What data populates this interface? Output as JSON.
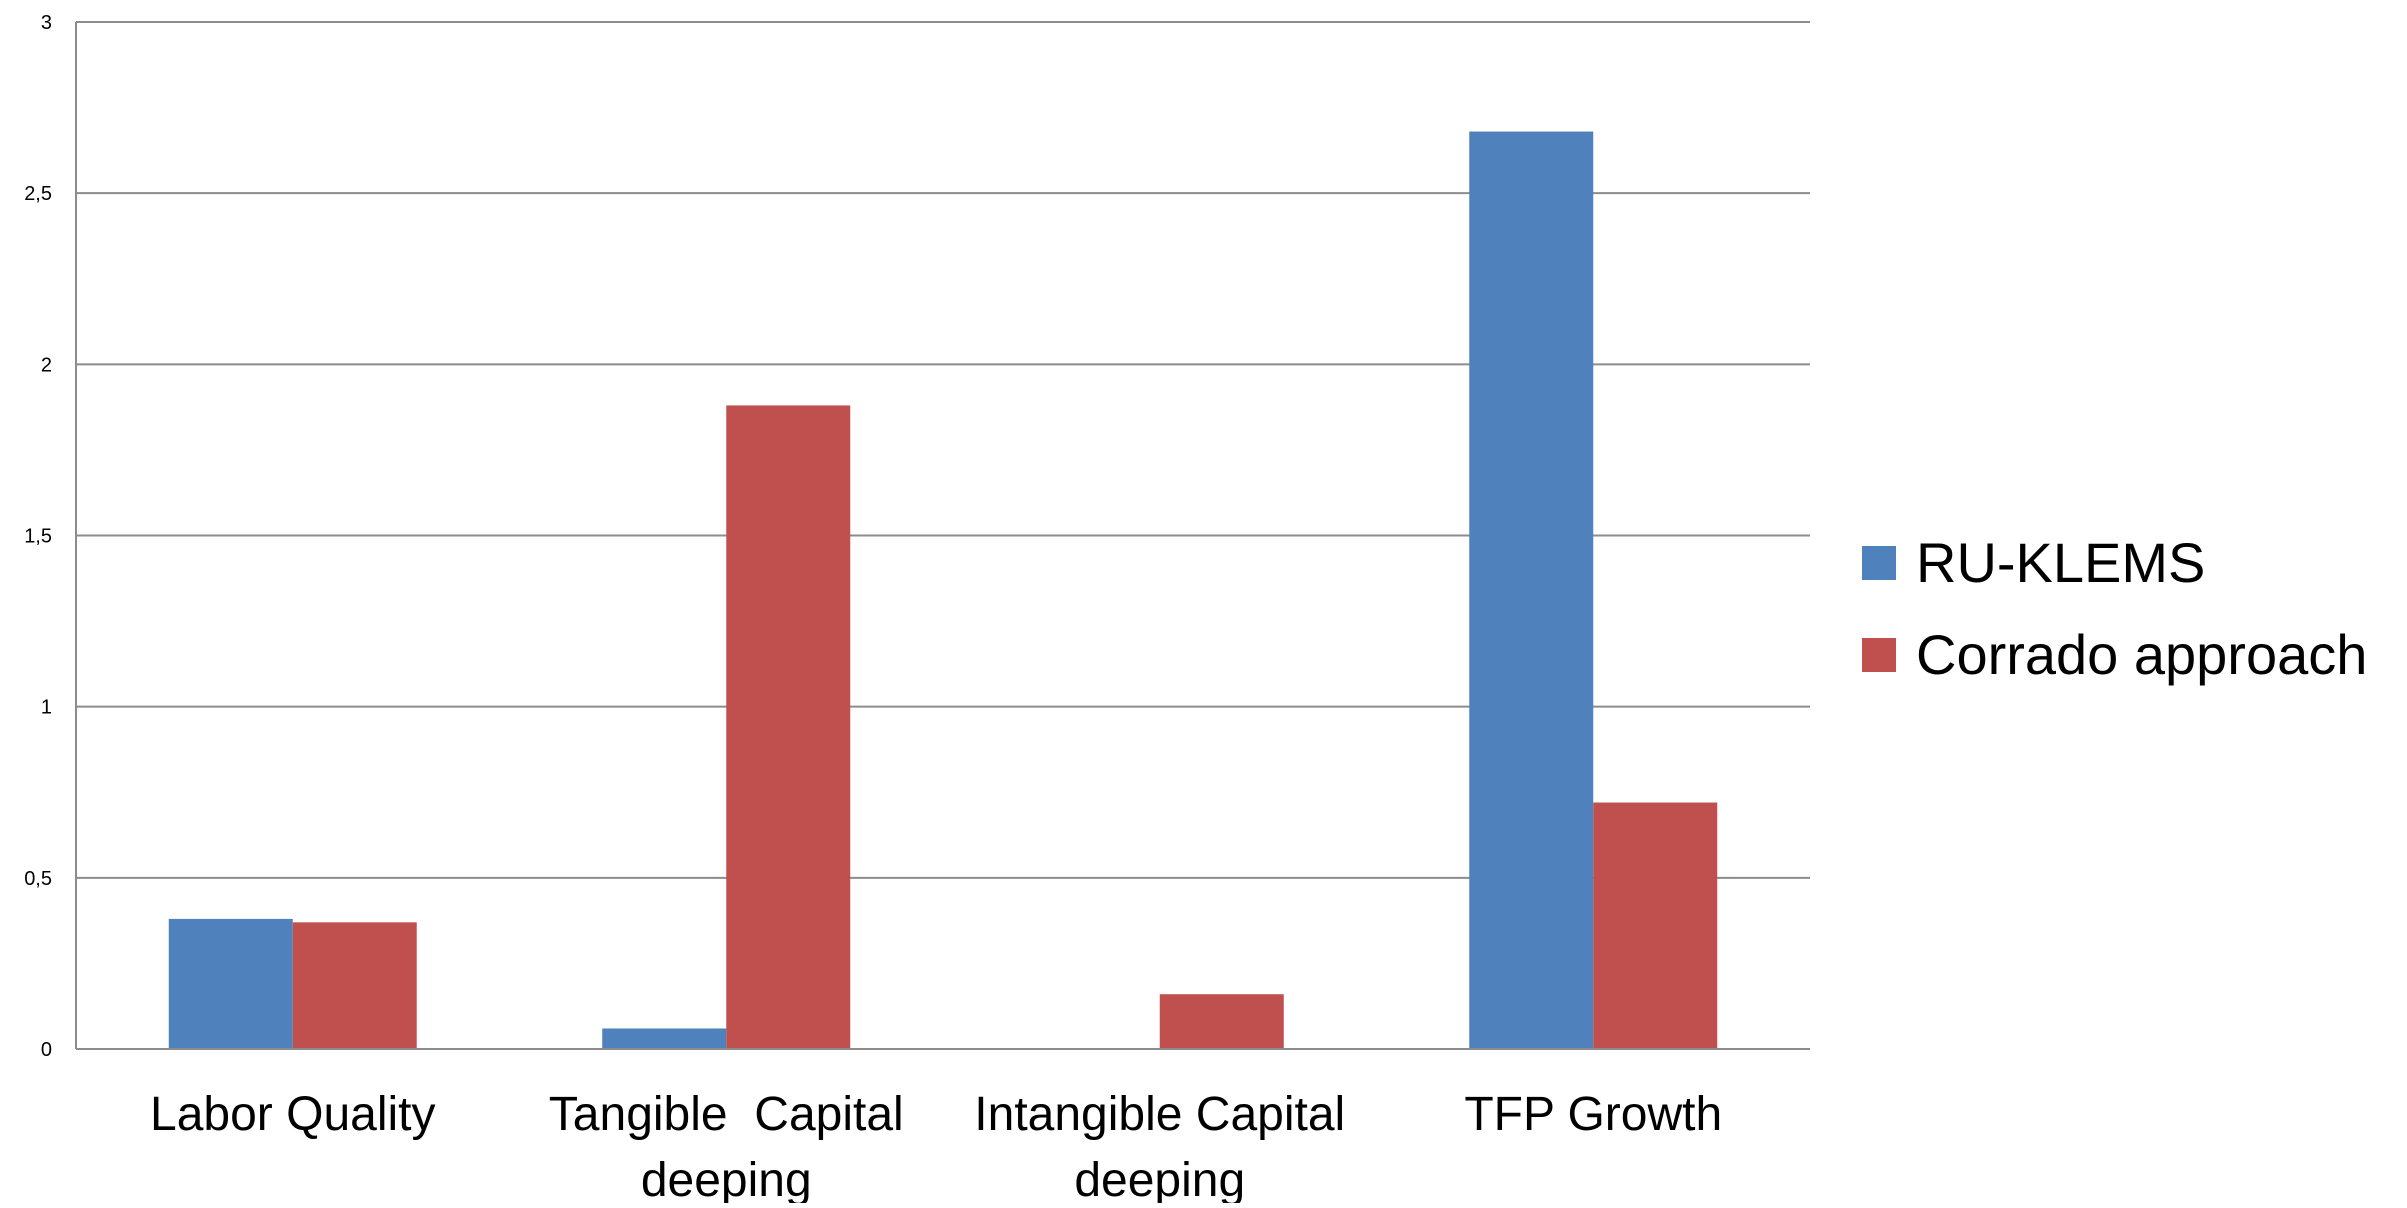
{
  "chart_data": {
    "type": "bar",
    "title": "",
    "xlabel": "",
    "ylabel": "",
    "categories": [
      [
        "Labor Quality"
      ],
      [
        "Tangible  Capital",
        "deeping"
      ],
      [
        "Intangible Capital",
        "deeping"
      ],
      [
        "TFP Growth"
      ]
    ],
    "series": [
      {
        "name": "RU-KLEMS",
        "color": "#4f81bd",
        "values": [
          0.38,
          0.06,
          0,
          2.68
        ]
      },
      {
        "name": "Corrado approach",
        "color": "#c0504d",
        "values": [
          0.37,
          1.88,
          0.16,
          0.72
        ]
      }
    ],
    "ylim": [
      0,
      3
    ],
    "yticks": [
      0,
      0.5,
      1,
      1.5,
      2,
      2.5,
      3
    ],
    "ytick_labels": [
      "0",
      "0,5",
      "1",
      "1,5",
      "2",
      "2,5",
      "3"
    ],
    "grid": true,
    "legend_position": "right"
  }
}
